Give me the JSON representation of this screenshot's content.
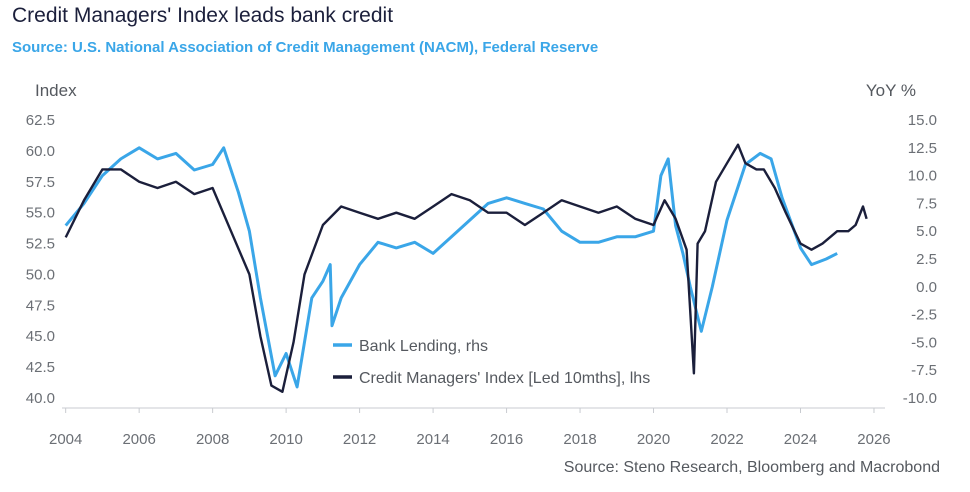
{
  "title": "Credit Managers' Index leads bank credit",
  "subtitle": "Source: U.S. National Association of Credit Management (NACM), Federal Reserve",
  "source_note": "Source: Steno Research, Bloomberg and Macrobond",
  "colors": {
    "bank_lending": "#3aa6e8",
    "cmi": "#1b1f3b",
    "title": "#1b1f3b",
    "subtitle": "#3aa6e8"
  },
  "chart_data": {
    "type": "line",
    "grid": false,
    "legend_position": "center-bottom",
    "xlim": [
      2003.9,
      2026.3
    ],
    "x_ticks": [
      2004,
      2006,
      2008,
      2010,
      2012,
      2014,
      2016,
      2018,
      2020,
      2022,
      2024,
      2026
    ],
    "left_axis": {
      "label": "Index",
      "ylim": [
        40.0,
        62.5
      ],
      "ticks": [
        "62.5",
        "60.0",
        "57.5",
        "55.0",
        "52.5",
        "50.0",
        "47.5",
        "45.0",
        "42.5",
        "40.0"
      ]
    },
    "right_axis": {
      "label": "YoY %",
      "ylim": [
        -10.0,
        15.0
      ],
      "ticks": [
        "15.0",
        "12.5",
        "10.0",
        "7.5",
        "5.0",
        "2.5",
        "0.0",
        "-2.5",
        "-5.0",
        "-7.5",
        "-10.0"
      ]
    },
    "series": [
      {
        "name": "Bank Lending, rhs",
        "axis": "right",
        "x": [
          2004.0,
          2004.5,
          2005.0,
          2005.5,
          2006.0,
          2006.5,
          2007.0,
          2007.5,
          2008.0,
          2008.3,
          2008.7,
          2009.0,
          2009.3,
          2009.7,
          2010.0,
          2010.3,
          2010.7,
          2011.0,
          2011.2,
          2011.25,
          2011.5,
          2012.0,
          2012.5,
          2013.0,
          2013.5,
          2014.0,
          2014.5,
          2015.0,
          2015.5,
          2016.0,
          2016.5,
          2017.0,
          2017.5,
          2018.0,
          2018.5,
          2019.0,
          2019.5,
          2020.0,
          2020.2,
          2020.4,
          2020.6,
          2020.8,
          2021.0,
          2021.3,
          2021.6,
          2022.0,
          2022.5,
          2022.9,
          2023.2,
          2023.5,
          2024.0,
          2024.3,
          2024.7,
          2025.0
        ],
        "y": [
          5.5,
          7.5,
          10.0,
          11.5,
          12.5,
          11.5,
          12.0,
          10.5,
          11.0,
          12.5,
          8.5,
          5.0,
          -1.0,
          -8.0,
          -6.0,
          -9.0,
          -1.0,
          0.5,
          2.0,
          -3.5,
          -1.0,
          2.0,
          4.0,
          3.5,
          4.0,
          3.0,
          4.5,
          6.0,
          7.5,
          8.0,
          7.5,
          7.0,
          5.0,
          4.0,
          4.0,
          4.5,
          4.5,
          5.0,
          10.0,
          11.5,
          5.5,
          3.0,
          0.0,
          -4.0,
          0.0,
          6.0,
          11.0,
          12.0,
          11.5,
          8.0,
          3.5,
          2.0,
          2.5,
          3.0
        ]
      },
      {
        "name": "Credit Managers' Index [Led 10mths], lhs",
        "axis": "left",
        "x": [
          2004.0,
          2004.5,
          2005.0,
          2005.5,
          2006.0,
          2006.5,
          2007.0,
          2007.5,
          2008.0,
          2008.5,
          2009.0,
          2009.3,
          2009.6,
          2009.9,
          2010.2,
          2010.5,
          2011.0,
          2011.5,
          2012.0,
          2012.5,
          2013.0,
          2013.5,
          2014.0,
          2014.5,
          2015.0,
          2015.5,
          2016.0,
          2016.5,
          2017.0,
          2017.5,
          2018.0,
          2018.5,
          2019.0,
          2019.5,
          2020.0,
          2020.3,
          2020.6,
          2020.9,
          2021.1,
          2021.2,
          2021.4,
          2021.7,
          2022.0,
          2022.3,
          2022.5,
          2022.8,
          2023.0,
          2023.3,
          2023.6,
          2024.0,
          2024.3,
          2024.6,
          2025.0,
          2025.3,
          2025.5,
          2025.7,
          2025.8
        ],
        "y": [
          53.0,
          56.0,
          58.5,
          58.5,
          57.5,
          57.0,
          57.5,
          56.5,
          57.0,
          53.5,
          50.0,
          45.0,
          41.0,
          40.5,
          44.5,
          50.0,
          54.0,
          55.5,
          55.0,
          54.5,
          55.0,
          54.5,
          55.5,
          56.5,
          56.0,
          55.0,
          55.0,
          54.0,
          55.0,
          56.0,
          55.5,
          55.0,
          55.5,
          54.5,
          54.0,
          56.0,
          54.5,
          52.0,
          42.0,
          52.5,
          53.5,
          57.5,
          59.0,
          60.5,
          59.0,
          58.5,
          58.5,
          57.0,
          55.0,
          52.5,
          52.0,
          52.5,
          53.5,
          53.5,
          54.0,
          55.5,
          54.5
        ]
      }
    ]
  }
}
